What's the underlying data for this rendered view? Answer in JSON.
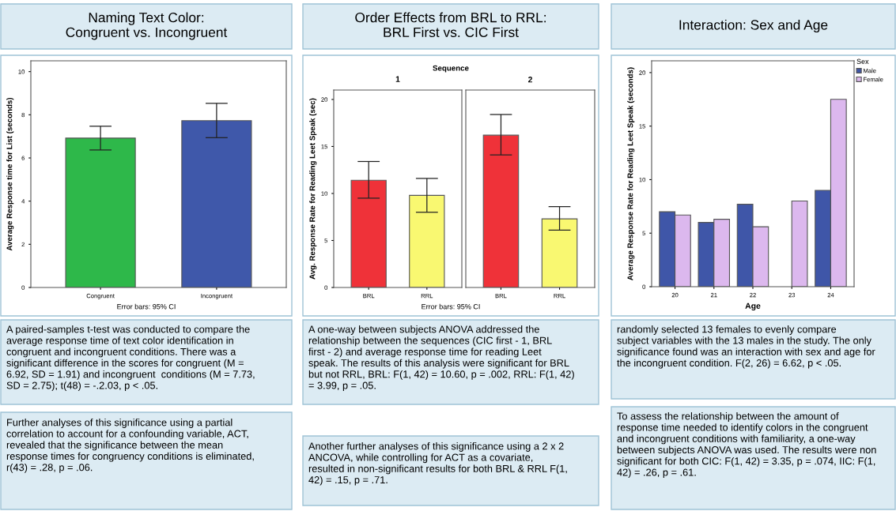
{
  "chart_data": [
    {
      "type": "bar",
      "title": "Naming Text Color:\nCongruent vs. Incongruent",
      "ylabel": "Average Response time for List (seconds)",
      "categories": [
        "Congruent",
        "Incongruent"
      ],
      "values": [
        6.92,
        7.73
      ],
      "colors": [
        "#2eb84a",
        "#3f58aa"
      ],
      "errors": [
        [
          6.37,
          7.47
        ],
        [
          6.94,
          8.53
        ]
      ],
      "ylim": [
        0,
        10.5
      ],
      "yticks": [
        0,
        2,
        4,
        6,
        8,
        10
      ],
      "grid": false,
      "annotations": [
        "Error bars: 95% CI",
        "A paired-samples t-test was conducted to compare the\naverage response time of text color identification in\ncongruent and incongruent conditions. There was a\nsignificant difference in the scores for congruent (M =\n6.92, SD = 1.91) and incongruent  conditions (M = 7.73,\nSD = 2.75); t(48) = -.2.03, p < .05.",
        "Further analyses of this significance using a partial\ncorrelation to account for a confounding variable, ACT,\nrevealed that the significance between the mean\nresponse times for congruency conditions is eliminated,\nr(43) = .28, p = .06."
      ]
    },
    {
      "type": "bar",
      "title": "Order Effects from BRL to RRL:\nBRL First vs. CIC First",
      "subtitle": "Sequence",
      "ylabel": "Avg. Response Rate for Reading Leet Speak (sec)",
      "categories": [
        "BRL",
        "RRL"
      ],
      "values": [
        11.4,
        9.8
      ],
      "colors": [
        "#ef3239",
        "#f9f871"
      ],
      "errors": [
        [
          9.5,
          13.4
        ],
        [
          8.0,
          11.6
        ]
      ],
      "ylim": [
        0,
        21
      ],
      "yticks": [
        0,
        5,
        10,
        15,
        20
      ],
      "grid": false,
      "annotations": [
        "1",
        "Error bars: 95% CI",
        "A one-way between subjects ANOVA addressed the\nrelationship between the sequences (CIC first - 1, BRL\nfirst - 2) and average response time for reading Leet\nspeak. The results of this analysis were significant for BRL\nbut not RRL, BRL: F(1, 42) = 10.60, p = .002, RRL: F(1, 42)\n= 3.99, p = .05.",
        "Another further analyses of this significance using a 2 x 2\nANCOVA, while controlling for ACT as a covariate,\nresulted in non-significant results for both BRL & RRL F(1,\n42) = .15, p = .71."
      ]
    },
    {
      "type": "bar",
      "title": "2",
      "categories": [
        "BRL",
        "RRL"
      ],
      "values": [
        16.2,
        7.3
      ],
      "colors": [
        "#ef3239",
        "#f9f871"
      ],
      "errors": [
        [
          14.1,
          18.4
        ],
        [
          6.1,
          8.6
        ]
      ],
      "ylim": [
        0,
        21
      ],
      "yticks": [
        0,
        5,
        10,
        15,
        20
      ],
      "tick_labels": "x",
      "grid": false
    },
    {
      "type": "bar",
      "title": "Interaction: Sex and Age",
      "xlabel": "Age",
      "ylabel": "Average Response Rate for Reading Leet Speak (seconds)",
      "legend_title": "Sex",
      "legend": "top right",
      "grid": false,
      "categories": [
        "20",
        "21",
        "22",
        "23",
        "24"
      ],
      "ylim": [
        0,
        21.1
      ],
      "yticks": [
        0,
        5,
        10,
        15,
        20
      ],
      "series": [
        {
          "name": "Male",
          "color": "#3f56a8",
          "values": [
            7.0,
            6.0,
            7.7,
            null,
            9.0
          ]
        },
        {
          "name": "Female",
          "color": "#dcb8ee",
          "values": [
            6.7,
            6.3,
            5.6,
            8.0,
            17.5
          ]
        }
      ],
      "annotations": [
        "randomly selected 13 females to evenly compare\nsubject variables with the 13 males in the study. The only\nsignificance found was an interaction with sex and age for\nthe incongruent condition. F(2, 26) = 6.62, p < .05.",
        "To assess the relationship between the amount of\nresponse time needed to identify colors in the congruent\nand incongruent conditions with familiarity, a one-way\nbetween subjects ANOVA was used. The results were non\nsignificant for both CIC: F(1, 42) = 3.35, p = .074, IIC: F(1,\n42) = .26, p = .61."
      ]
    }
  ]
}
